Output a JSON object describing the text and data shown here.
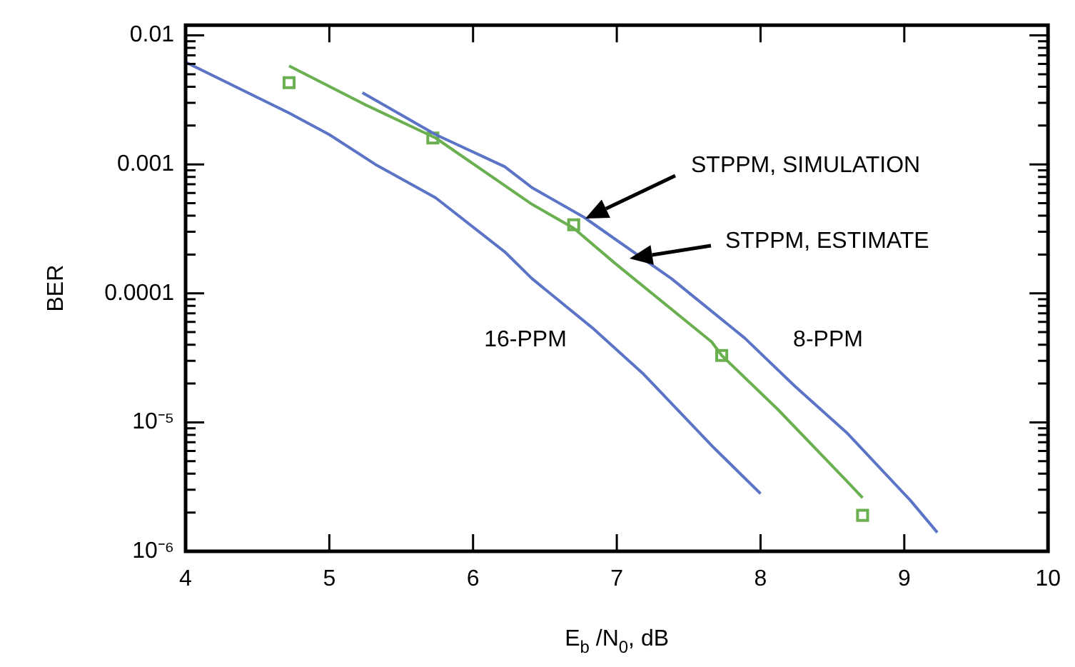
{
  "chart_data": {
    "type": "line",
    "xlabel": "E$_{b}$ /N$_{0}$, dB",
    "ylabel": "BER",
    "log": "y",
    "grid": false,
    "legend": false,
    "line_style": "solid",
    "xlim": [
      4,
      10
    ],
    "xticks": [
      4,
      5,
      6,
      7,
      8,
      9,
      10
    ],
    "ylim": [
      1e-06,
      0.012
    ],
    "yticks": [
      {
        "value": 1e-06,
        "label": "10⁻⁶"
      },
      {
        "value": 2e-06,
        "label": null
      },
      {
        "value": 3e-06,
        "label": null
      },
      {
        "value": 4e-06,
        "label": null
      },
      {
        "value": 5e-06,
        "label": null
      },
      {
        "value": 6e-06,
        "label": null
      },
      {
        "value": 7e-06,
        "label": null
      },
      {
        "value": 8e-06,
        "label": null
      },
      {
        "value": 9e-06,
        "label": null
      },
      {
        "value": 1e-05,
        "label": "10⁻⁵"
      },
      {
        "value": 2e-05,
        "label": null
      },
      {
        "value": 3e-05,
        "label": null
      },
      {
        "value": 4e-05,
        "label": null
      },
      {
        "value": 5e-05,
        "label": null
      },
      {
        "value": 6e-05,
        "label": null
      },
      {
        "value": 7e-05,
        "label": null
      },
      {
        "value": 8e-05,
        "label": null
      },
      {
        "value": 9e-05,
        "label": null
      },
      0.0001,
      {
        "value": 0.0002,
        "label": null
      },
      {
        "value": 0.0003,
        "label": null
      },
      {
        "value": 0.0004,
        "label": null
      },
      {
        "value": 0.0005,
        "label": null
      },
      {
        "value": 0.0006,
        "label": null
      },
      {
        "value": 0.0007,
        "label": null
      },
      {
        "value": 0.0008,
        "label": null
      },
      {
        "value": 0.0009,
        "label": null
      },
      0.001,
      {
        "value": 0.002,
        "label": null
      },
      {
        "value": 0.003,
        "label": null
      },
      {
        "value": 0.004,
        "label": null
      },
      {
        "value": 0.005,
        "label": null
      },
      {
        "value": 0.006,
        "label": null
      },
      {
        "value": 0.007,
        "label": null
      },
      {
        "value": 0.008,
        "label": null
      },
      {
        "value": 0.009,
        "label": null
      },
      0.01
    ],
    "series": [
      {
        "color": "#5b74c6",
        "x": [
          4,
          4.72,
          5,
          5.32,
          5.74,
          6.22,
          6.41,
          6.83,
          7.18,
          7.66,
          8
        ],
        "values": [
          0.0062,
          0.0025,
          0.0017,
          0.001,
          0.00055,
          0.00021,
          0.00013,
          5.4e-05,
          2.4e-05,
          6.6e-06,
          2.8e-06
        ]
      },
      {
        "color": "#5b74c6",
        "x": [
          5.23,
          5.74,
          6.22,
          6.41,
          6.77,
          7.38,
          7.89,
          8.24,
          8.6,
          9.04,
          9.23
        ],
        "values": [
          0.0036,
          0.0017,
          0.00096,
          0.00066,
          0.00039,
          0.00013,
          4.5e-05,
          1.9e-05,
          8.3e-06,
          2.5e-06,
          1.4e-06
        ]
      },
      {
        "color": "#6aaf50",
        "x": [
          4.72,
          5.25,
          5.74,
          6.41,
          6.7,
          6.99,
          7.66,
          7.73,
          8.12,
          8.6,
          8.71
        ],
        "values": [
          0.0058,
          0.0029,
          0.0016,
          0.00049,
          0.00032,
          0.00017,
          4.2e-05,
          3.3e-05,
          1.26e-05,
          3.5e-06,
          2.6e-06
        ]
      },
      {
        "type": "scatter",
        "color": "#6aaf50",
        "marker": "square",
        "x": [
          4.72,
          5.72,
          6.7,
          7.73,
          8.71
        ],
        "values": [
          0.0043,
          0.0016,
          0.00034,
          3.3e-05,
          1.9e-06
        ]
      }
    ],
    "annotations": [
      "STPPM, SIMULATION",
      "STPPM, ESTIMATE",
      "16-PPM",
      "8-PPM"
    ]
  }
}
